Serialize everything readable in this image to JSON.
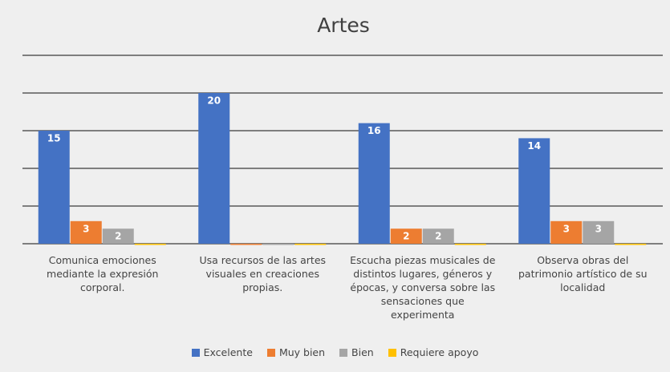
{
  "chart_data": {
    "type": "bar",
    "title": "Artes",
    "categories": [
      "Comunica emociones mediante la expresión corporal.",
      "Usa recursos de las artes visuales en creaciones propias.",
      "Escucha piezas musicales de distintos lugares, géneros y épocas, y conversa sobre las sensaciones que experimenta",
      "Observa obras del patrimonio artístico de su localidad"
    ],
    "series": [
      {
        "name": "Excelente",
        "color": "#4472c4",
        "values": [
          15,
          20,
          16,
          14
        ]
      },
      {
        "name": "Muy bien",
        "color": "#ed7d31",
        "values": [
          3,
          0,
          2,
          3
        ]
      },
      {
        "name": "Bien",
        "color": "#a5a5a5",
        "values": [
          2,
          0,
          2,
          3
        ]
      },
      {
        "name": "Requiere apoyo",
        "color": "#ffc000",
        "values": [
          0,
          0,
          0,
          0
        ]
      }
    ],
    "ylim": [
      0,
      25
    ],
    "yticks": [
      0,
      5,
      10,
      15,
      20,
      25
    ],
    "grid": true,
    "legend": "bottom"
  }
}
